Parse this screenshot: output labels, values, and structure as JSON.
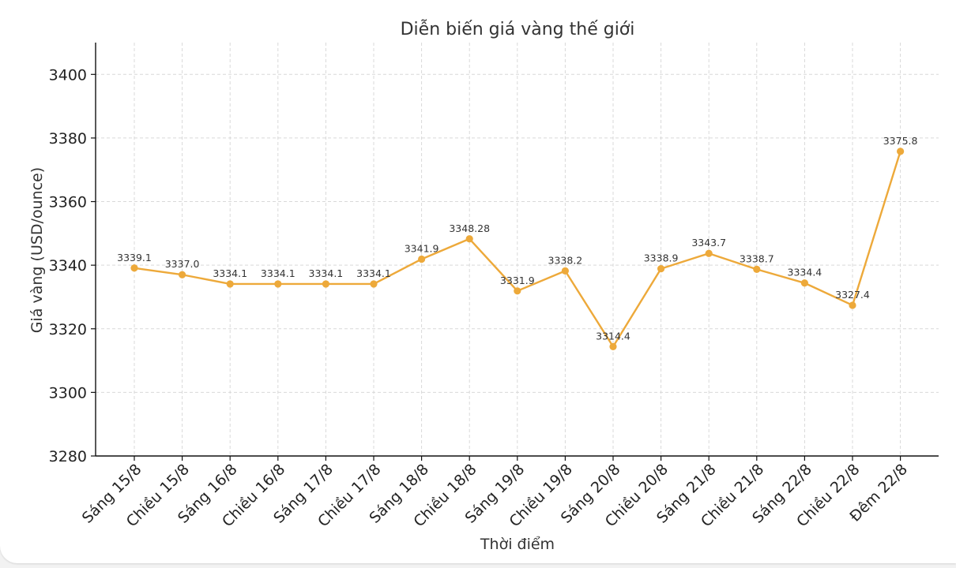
{
  "chart_data": {
    "type": "line",
    "title": "Diễn biến giá vàng thế giới",
    "xlabel": "Thời điểm",
    "ylabel": "Giá vàng (USD/ounce)",
    "categories": [
      "Sáng 15/8",
      "Chiều 15/8",
      "Sáng 16/8",
      "Chiều 16/8",
      "Sáng 17/8",
      "Chiều 17/8",
      "Sáng 18/8",
      "Chiều 18/8",
      "Sáng 19/8",
      "Chiều 19/8",
      "Sáng 20/8",
      "Chiều 20/8",
      "Sáng 21/8",
      "Chiều 21/8",
      "Sáng 22/8",
      "Chiều 22/8",
      "Đêm 22/8"
    ],
    "values": [
      3339.1,
      3337.0,
      3334.1,
      3334.1,
      3334.1,
      3334.1,
      3341.9,
      3348.28,
      3331.9,
      3338.2,
      3314.4,
      3338.9,
      3343.7,
      3338.7,
      3334.4,
      3327.4,
      3375.8
    ],
    "data_labels": [
      "3339.1",
      "3337.0",
      "3334.1",
      "3334.1",
      "3334.1",
      "3334.1",
      "3341.9",
      "3348.28",
      "3331.9",
      "3338.2",
      "3314.4",
      "3338.9",
      "3343.7",
      "3338.7",
      "3334.4",
      "3327.4",
      "3375.8"
    ],
    "yticks": [
      3280,
      3300,
      3320,
      3340,
      3360,
      3380,
      3400
    ],
    "ylim": [
      3280,
      3410
    ],
    "grid": true,
    "legend": "none",
    "line_color": "#EDA93A"
  }
}
